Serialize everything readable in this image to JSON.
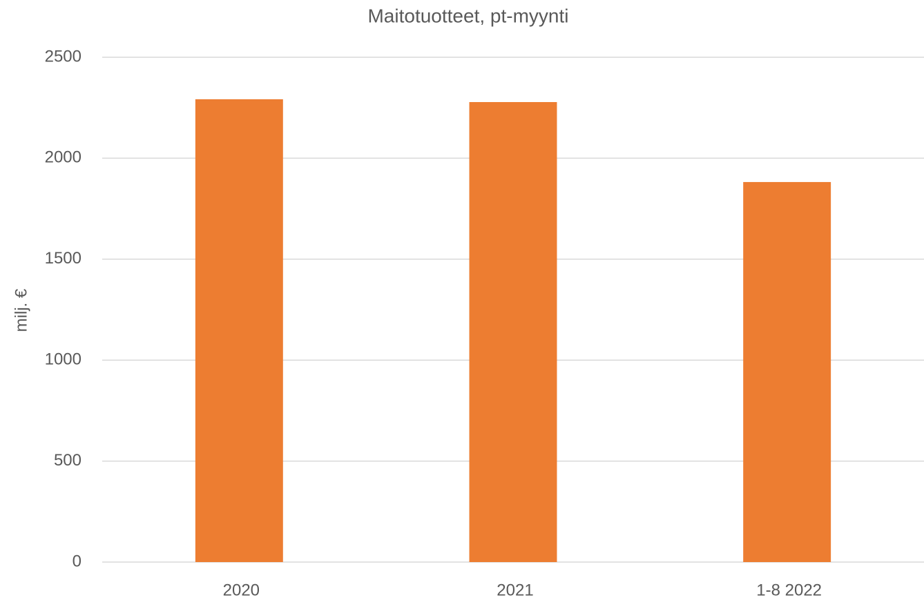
{
  "chart_data": {
    "type": "bar",
    "title": "Maitotuotteet, pt-myynti",
    "y_label": "milj. €",
    "categories": [
      "2020",
      "2021",
      "1-8 2022"
    ],
    "values": [
      2292,
      2278,
      1882
    ],
    "color": "#ed7d31",
    "ylim": [
      0,
      2500
    ],
    "yticks": [
      0,
      500,
      1000,
      1500,
      2000,
      2500
    ],
    "grid": true
  }
}
